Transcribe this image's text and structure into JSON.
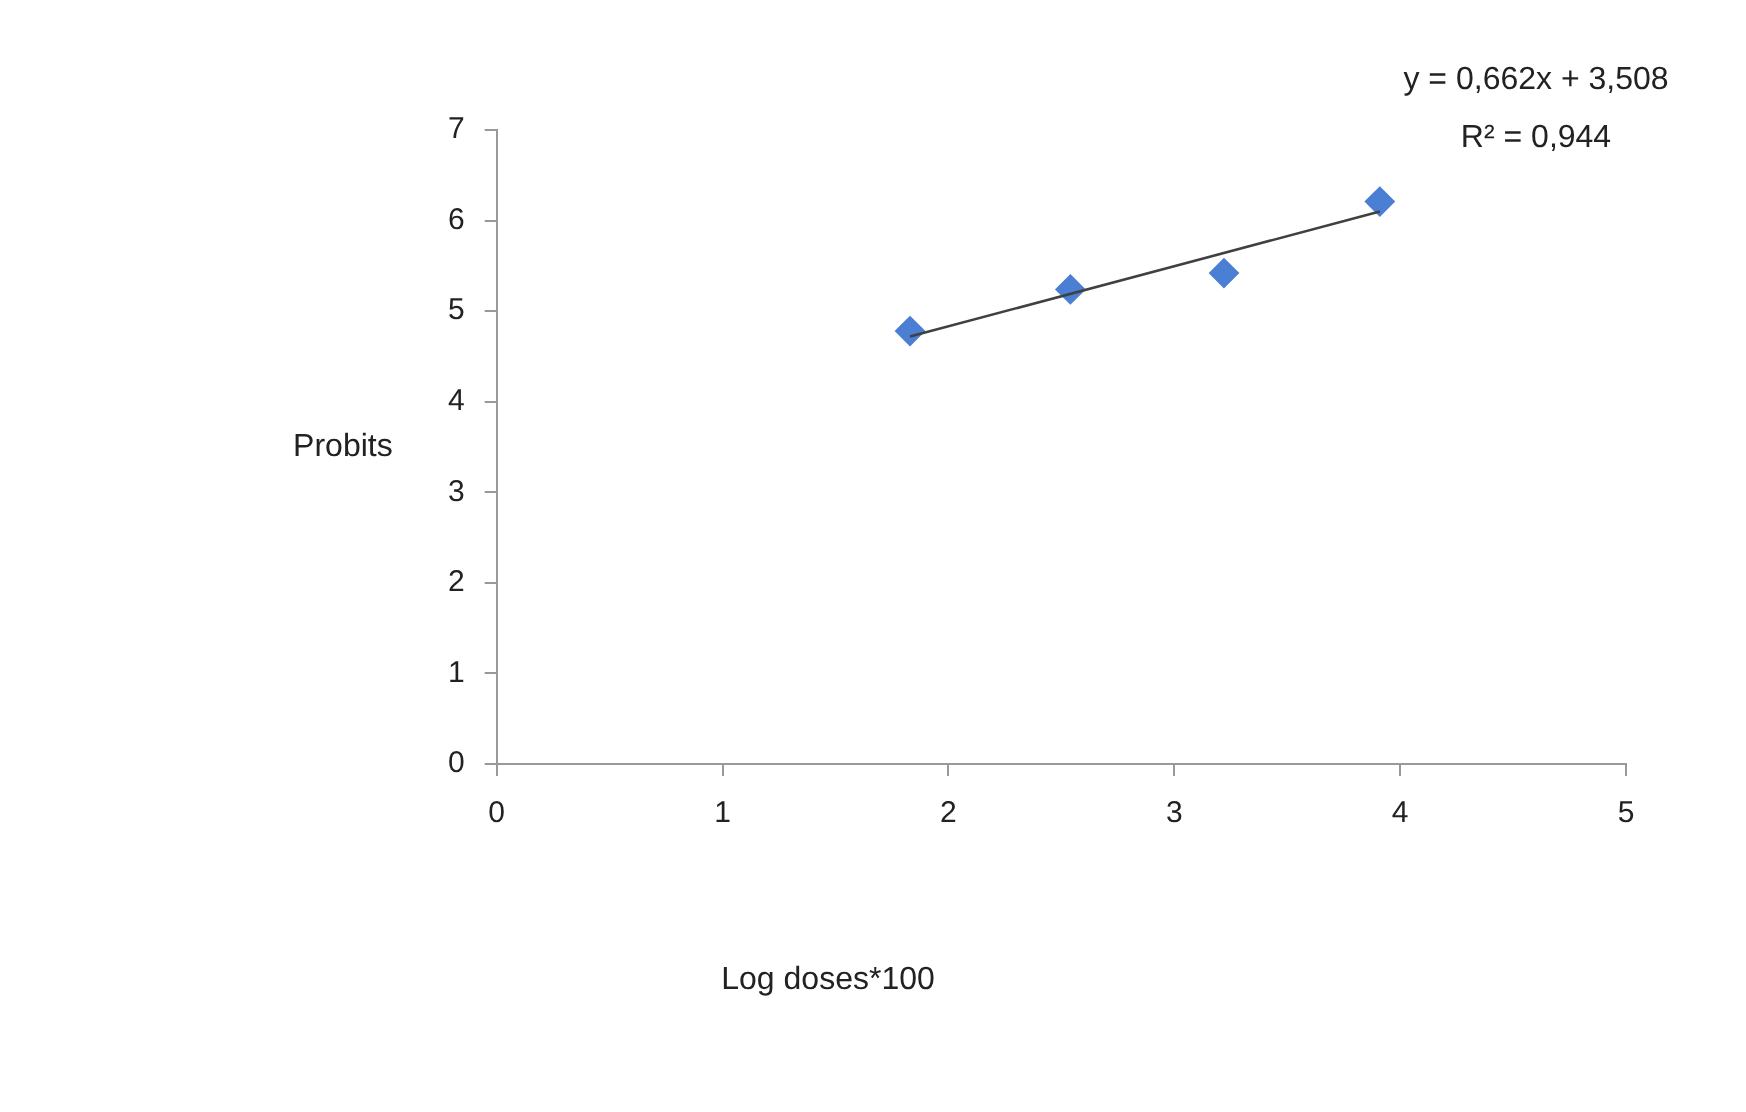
{
  "chart_data": {
    "type": "scatter",
    "xlabel": "Log doses*100",
    "ylabel": "Probits",
    "annotations": [
      "y = 0,662x + 3,508",
      "R² = 0,944"
    ],
    "series": [
      {
        "color": "#4a7fd4",
        "marker": "diamond",
        "x": [
          1.83,
          2.54,
          3.22,
          3.91
        ],
        "values": [
          4.78,
          5.24,
          5.42,
          6.21
        ]
      },
      {
        "type": "line",
        "color": "#404040",
        "marker": "none",
        "line_style": "solid",
        "x": [
          1.83,
          3.91
        ],
        "values": [
          4.72,
          6.1
        ]
      }
    ],
    "xlim": [
      0,
      5
    ],
    "xticks": [
      0,
      1,
      2,
      3,
      4,
      5
    ],
    "ylim": [
      0,
      7
    ],
    "yticks": [
      0,
      1,
      2,
      3,
      4,
      5,
      6,
      7
    ],
    "grid": false,
    "legend": false
  }
}
